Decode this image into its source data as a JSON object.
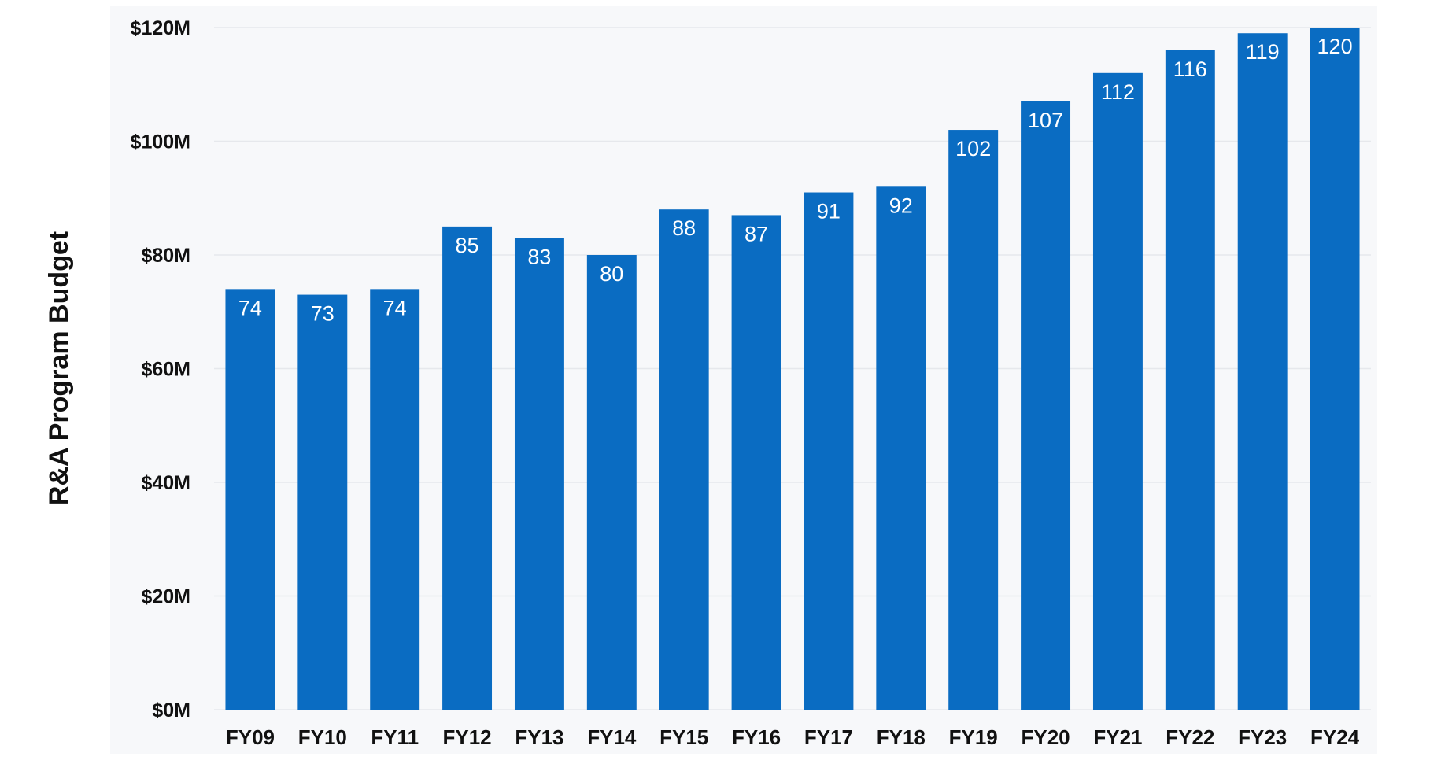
{
  "chart_data": {
    "type": "bar",
    "title": "",
    "xlabel": "",
    "ylabel": "R&A Program Budget",
    "categories": [
      "FY09",
      "FY10",
      "FY11",
      "FY12",
      "FY13",
      "FY14",
      "FY15",
      "FY16",
      "FY17",
      "FY18",
      "FY19",
      "FY20",
      "FY21",
      "FY22",
      "FY23",
      "FY24"
    ],
    "values": [
      74,
      73,
      74,
      85,
      83,
      80,
      88,
      87,
      91,
      92,
      102,
      107,
      112,
      116,
      119,
      120
    ],
    "data_labels": [
      "74",
      "73",
      "74",
      "85",
      "83",
      "80",
      "88",
      "87",
      "91",
      "92",
      "102",
      "107",
      "112",
      "116",
      "119",
      "120"
    ],
    "ylim": [
      0,
      120
    ],
    "yticks": [
      0,
      20,
      40,
      60,
      80,
      100,
      120
    ],
    "ytick_labels": [
      "$0M",
      "$20M",
      "$40M",
      "$60M",
      "$80M",
      "$100M",
      "$120M"
    ],
    "grid": true,
    "legend": "none",
    "colors": {
      "bar": "#0a6cc2",
      "plot_background": "#f7f8fa",
      "gridline": "#e6e8ec",
      "data_label": "#ffffff",
      "text": "#111111"
    }
  }
}
